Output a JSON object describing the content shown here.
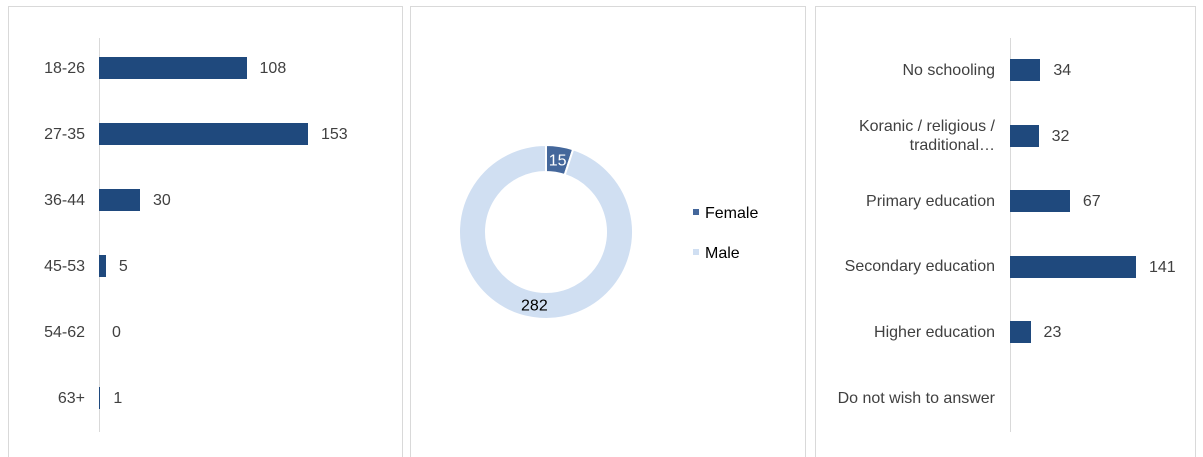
{
  "chart_data": [
    {
      "type": "bar",
      "orientation": "horizontal",
      "color": "#1f497d",
      "categories": [
        "18-26",
        "27-35",
        "36-44",
        "45-53",
        "54-62",
        "63+"
      ],
      "values": [
        108,
        153,
        30,
        5,
        0,
        1
      ]
    },
    {
      "type": "pie",
      "hole": true,
      "categories": [
        "Female",
        "Male"
      ],
      "values": [
        15,
        282
      ],
      "colors": [
        "#44679b",
        "#d0dff2"
      ],
      "legend": "right"
    },
    {
      "type": "bar",
      "orientation": "horizontal",
      "color": "#1f497d",
      "categories": [
        "No schooling",
        "Koranic / religious / traditional…",
        "Primary education",
        "Secondary education",
        "Higher education",
        "Do not wish to answer"
      ],
      "values": [
        34,
        32,
        67,
        141,
        23,
        null
      ]
    }
  ]
}
